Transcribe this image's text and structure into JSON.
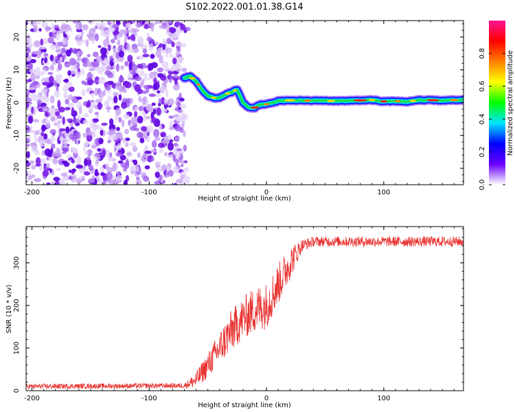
{
  "title": "S102.2022.001.01.38.G14",
  "colors": {
    "snr_line": "#e8312f",
    "axis": "#000000",
    "scatter_colors": [
      "#5b00e0",
      "#7a1ee8",
      "#9a55ee",
      "#c49cf2",
      "#e2d2f8"
    ]
  },
  "chart_data": [
    {
      "type": "heatmap",
      "name": "spectrogram",
      "xlabel": "Height of straight line (km)",
      "ylabel": "Frequency (Hz)",
      "xlim": [
        -205,
        168
      ],
      "ylim": [
        -25,
        25
      ],
      "xticks": [
        -200,
        -100,
        0,
        100
      ],
      "xtick_labels": [
        "-200",
        "-100",
        "0",
        "100"
      ],
      "yticks": [
        -20,
        -10,
        0,
        10,
        20
      ],
      "ytick_labels": [
        "-20",
        "-10",
        "0",
        "10",
        "20"
      ],
      "noise_region_x": [
        -205,
        -67
      ],
      "signal_track": {
        "x": [
          -70,
          -65,
          -60,
          -55,
          -50,
          -45,
          -40,
          -35,
          -30,
          -25,
          -20,
          -15,
          -10,
          -5,
          0,
          5,
          10,
          20,
          40,
          60,
          80,
          90,
          100,
          110,
          120,
          130,
          150,
          168
        ],
        "frequency": [
          7.5,
          8,
          6.5,
          4,
          2,
          1.5,
          1.5,
          2.5,
          3.2,
          4,
          0,
          -1.5,
          -1.5,
          -0.5,
          -0.5,
          0,
          0.5,
          0.7,
          0.6,
          0.5,
          0.7,
          0.8,
          0.4,
          0.5,
          0.3,
          0.8,
          0.7,
          0.8
        ]
      },
      "colorbar": {
        "label": "Normalized spectral amplitude",
        "ticks": [
          0.0,
          0.2,
          0.4,
          0.6,
          0.8
        ],
        "tick_labels": [
          "0.0",
          "0.2",
          "0.4",
          "0.6",
          "0.8"
        ],
        "range": [
          0,
          1
        ],
        "colormap": [
          "#ffffff",
          "#6a00ff",
          "#0000ff",
          "#00e5ff",
          "#00ff00",
          "#ffff00",
          "#ff8000",
          "#ff0000",
          "#ff1493"
        ]
      }
    },
    {
      "type": "line",
      "name": "snr",
      "xlabel": "Height of straight line (km)",
      "ylabel": "SNR (10 * v/v)",
      "xlim": [
        -205,
        168
      ],
      "ylim": [
        0,
        385
      ],
      "xticks": [
        -200,
        -100,
        0,
        100
      ],
      "xtick_labels": [
        "-200",
        "-100",
        "0",
        "100"
      ],
      "yticks": [
        0,
        100,
        200,
        300
      ],
      "ytick_labels": [
        "0",
        "100",
        "200",
        "300"
      ],
      "series": [
        {
          "name": "SNR",
          "color": "#e8312f",
          "trend_x": [
            -205,
            -70,
            -60,
            -50,
            -40,
            -30,
            -20,
            -10,
            0,
            10,
            20,
            30,
            40,
            60,
            100,
            168
          ],
          "trend_y": [
            10,
            12,
            25,
            60,
            100,
            140,
            170,
            190,
            200,
            250,
            300,
            340,
            350,
            350,
            350,
            350
          ],
          "noise_amplitude": [
            6,
            6,
            20,
            30,
            40,
            50,
            50,
            55,
            55,
            50,
            40,
            15,
            12,
            12,
            12,
            12
          ]
        }
      ]
    }
  ]
}
